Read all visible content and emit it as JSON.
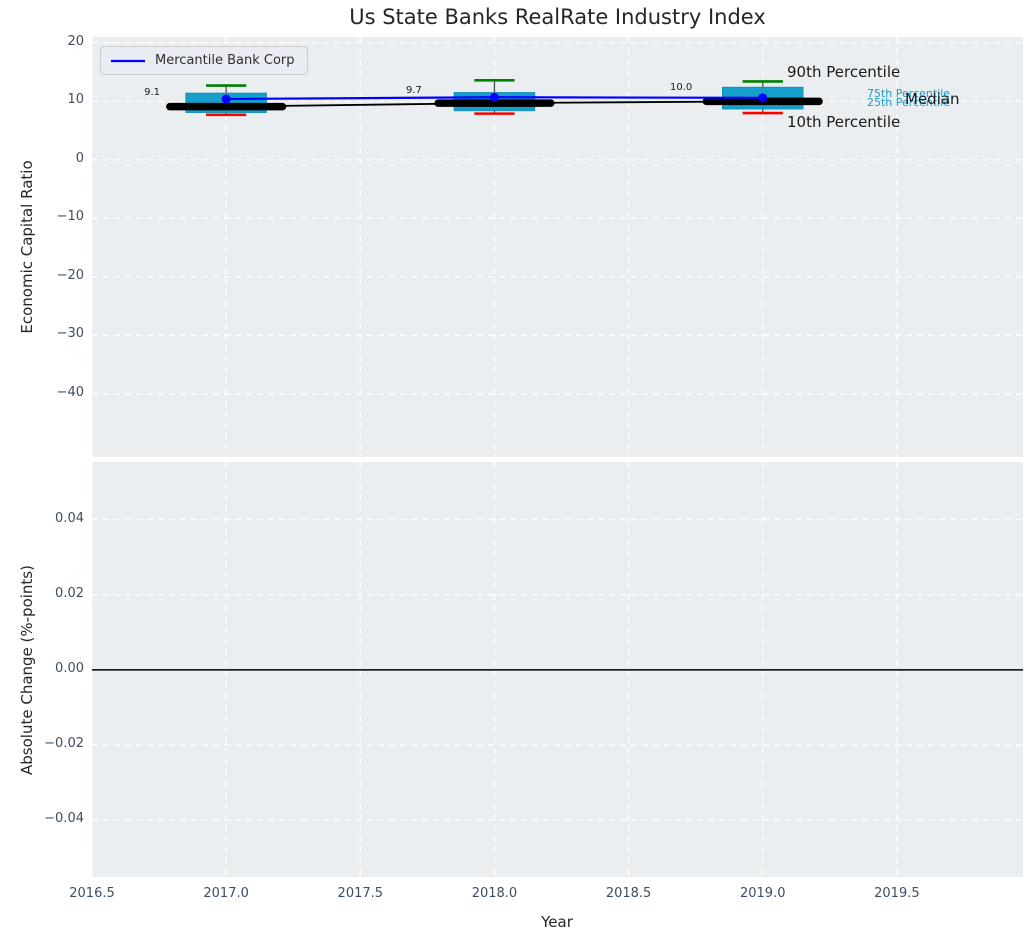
{
  "title": "Us State Banks RealRate Industry Index",
  "legend": {
    "label": "Mercantile Bank Corp"
  },
  "xaxis": {
    "label": "Year",
    "ticks": [
      2016.5,
      2017.0,
      2017.5,
      2018.0,
      2018.5,
      2019.0,
      2019.5
    ],
    "tick_labels": [
      "2016.5",
      "2017.0",
      "2017.5",
      "2018.0",
      "2018.5",
      "2019.0",
      "2019.5"
    ]
  },
  "top_axis": {
    "ylabel": "Economic Capital Ratio",
    "yticks": [
      20,
      10,
      0,
      -10,
      -20,
      -30,
      -40
    ],
    "ytick_labels": [
      "20",
      "10",
      "0",
      "−10",
      "−20",
      "−30",
      "−40"
    ]
  },
  "bottom_axis": {
    "ylabel": "Absolute Change (%-points)",
    "yticks": [
      0.04,
      0.02,
      0.0,
      -0.02,
      -0.04
    ],
    "ytick_labels": [
      "0.04",
      "0.02",
      "0.00",
      "−0.02",
      "−0.04"
    ]
  },
  "annotations": {
    "p90": "90th Percentile",
    "p75": "75th Percentile",
    "p25": "25th Percentile",
    "median": "Median",
    "p10": "10th Percentile"
  },
  "colors": {
    "axes_bg": "#eaeef1",
    "grid": "#ffffff",
    "box_fill": "#169fca",
    "box_edge": "#1591b8",
    "whisker": "#4a4a4a",
    "cap_top": "#008000",
    "cap_bottom": "#f50400",
    "median_line": "#000000",
    "company_line": "#0000ff",
    "zero_line": "#000000",
    "pct_small_text": "#189fc8"
  },
  "chart_data": [
    {
      "type": "boxplot+line",
      "panel": "top",
      "title": "Us State Banks RealRate Industry Index",
      "xlabel": "",
      "ylabel": "Economic Capital Ratio",
      "xlim": [
        2016.5,
        2019.97
      ],
      "ylim": [
        -50.8,
        21.0
      ],
      "grid": true,
      "x": [
        2017,
        2018,
        2019
      ],
      "boxes": [
        {
          "year": 2017,
          "p10": 7.7,
          "p25": 8.1,
          "median": 9.1,
          "p75": 11.4,
          "p90": 12.7
        },
        {
          "year": 2018,
          "p10": 7.9,
          "p25": 8.4,
          "median": 9.7,
          "p75": 11.5,
          "p90": 13.6
        },
        {
          "year": 2019,
          "p10": 8.0,
          "p25": 8.7,
          "median": 10.0,
          "p75": 12.4,
          "p90": 13.4
        }
      ],
      "median_labels": [
        "9.1",
        "9.7",
        "10.0"
      ],
      "box_width_years": 0.3,
      "cap_width_years": 0.15,
      "median_segment_halfwidth_years": 0.21,
      "series": [
        {
          "name": "Mercantile Bank Corp",
          "values": [
            10.4,
            10.7,
            10.6
          ]
        }
      ],
      "legend_position": "upper left"
    },
    {
      "type": "line",
      "panel": "bottom",
      "xlabel": "Year",
      "ylabel": "Absolute Change (%-points)",
      "xlim": [
        2016.5,
        2019.97
      ],
      "ylim": [
        -0.0551,
        0.0553
      ],
      "grid": true,
      "zero_line": 0.0,
      "visible_series": []
    }
  ]
}
